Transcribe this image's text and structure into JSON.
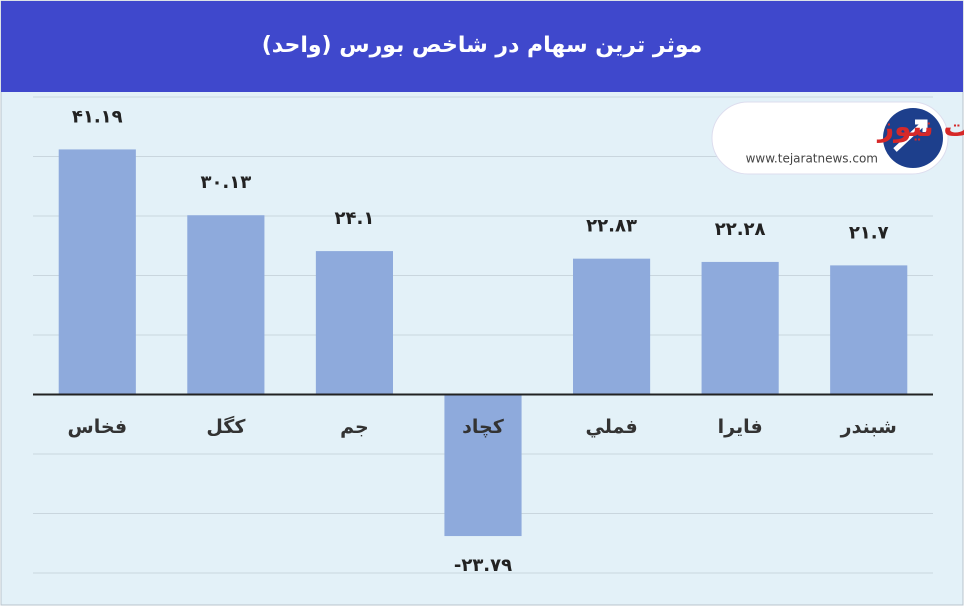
{
  "chart_data": {
    "type": "bar",
    "title": "موثر ترین سهام در شاخص بورس (واحد)",
    "categories": [
      "فخاس",
      "کگل",
      "جم",
      "کچاد",
      "فملي",
      "فايرا",
      "شبندر"
    ],
    "values": [
      41.19,
      30.13,
      24.1,
      -23.79,
      22.83,
      22.28,
      21.7
    ],
    "value_labels": [
      "۴۱.۱۹",
      "۳۰.۱۳",
      "۲۴.۱",
      "-۲۳.۷۹",
      "۲۲.۸۳",
      "۲۲.۲۸",
      "۲۱.۷"
    ],
    "color": "#8eaadc",
    "ylim": [
      -30,
      50
    ],
    "yticks": [
      -30,
      -20,
      -10,
      0,
      10,
      20,
      30,
      40,
      50
    ],
    "grid": true
  },
  "logo": {
    "name": "تجارت نیوز",
    "url": "www.tejaratnews.com"
  }
}
